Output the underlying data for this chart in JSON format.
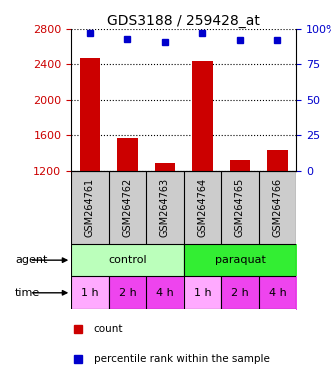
{
  "title": "GDS3188 / 259428_at",
  "samples": [
    "GSM264761",
    "GSM264762",
    "GSM264763",
    "GSM264764",
    "GSM264765",
    "GSM264766"
  ],
  "counts": [
    2470,
    1570,
    1290,
    2440,
    1320,
    1430
  ],
  "percentiles": [
    97,
    93,
    91,
    97,
    92,
    92
  ],
  "ylim_left": [
    1200,
    2800
  ],
  "ylim_right": [
    0,
    100
  ],
  "yticks_left": [
    1200,
    1600,
    2000,
    2400,
    2800
  ],
  "yticks_right": [
    0,
    25,
    50,
    75,
    100
  ],
  "yticklabels_right": [
    "0",
    "25",
    "50",
    "75",
    "100%"
  ],
  "bar_color": "#cc0000",
  "dot_color": "#0000cc",
  "control_color": "#bbffbb",
  "paraquat_color": "#33ee33",
  "time_colors": [
    "#ffaaff",
    "#ee44ee",
    "#ee44ee",
    "#ffaaff",
    "#ee44ee",
    "#ee44ee"
  ],
  "time_labels": [
    "1 h",
    "2 h",
    "4 h",
    "1 h",
    "2 h",
    "4 h"
  ],
  "sample_bg": "#cccccc",
  "title_fontsize": 10,
  "tick_fontsize": 8,
  "sample_fontsize": 7,
  "agent_fontsize": 8,
  "time_fontsize": 8,
  "legend_fontsize": 7.5
}
